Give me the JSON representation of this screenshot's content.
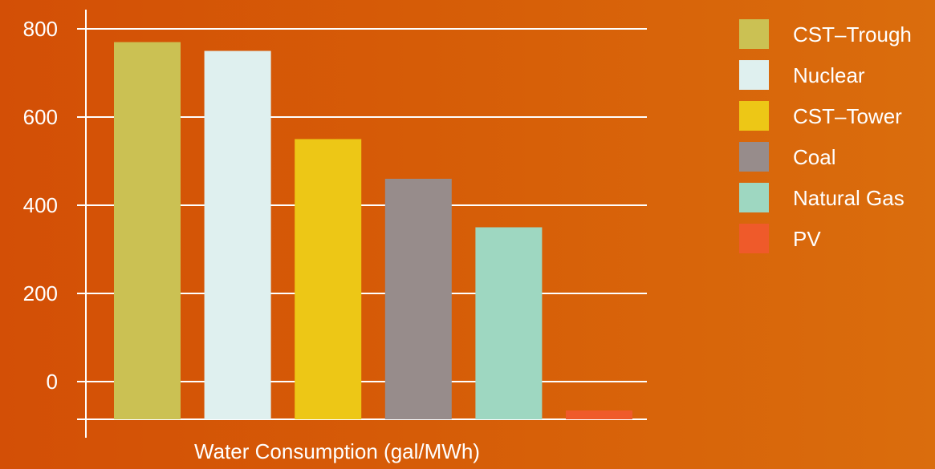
{
  "chart_data": {
    "type": "bar",
    "categories": [
      "CST–Trough",
      "Nuclear",
      "CST–Tower",
      "Coal",
      "Natural Gas",
      "PV"
    ],
    "values": [
      770,
      750,
      550,
      460,
      350,
      -100
    ],
    "colors": [
      "#cbc153",
      "#dff0ef",
      "#edc716",
      "#978c8b",
      "#9ed7c1",
      "#ef5a2a"
    ],
    "xlabel": "Water Consumption (gal/MWh)",
    "ylabel": "",
    "title": "",
    "yticks": [
      0,
      200,
      400,
      600,
      800
    ],
    "ylim": [
      -100,
      800
    ],
    "grid": true,
    "legend_position": "right"
  }
}
